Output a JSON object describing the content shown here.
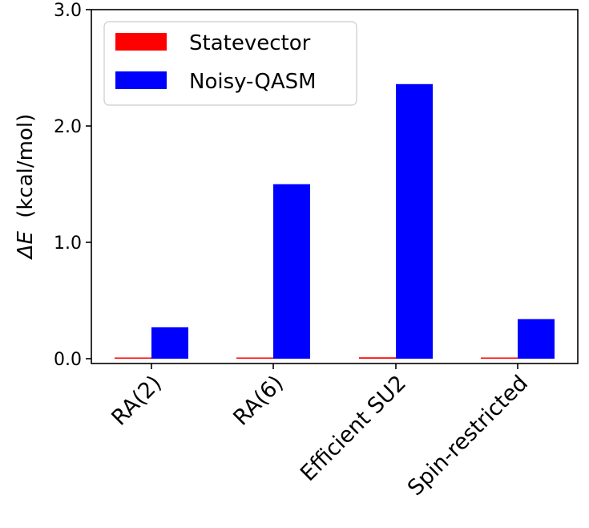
{
  "chart_data": {
    "type": "bar",
    "categories": [
      "RA(2)",
      "RA(6)",
      "Efficient SU2",
      "Spin-restricted"
    ],
    "series": [
      {
        "name": "Statevector",
        "values": [
          0.002,
          0.002,
          0.012,
          0.002
        ],
        "color": "#ff0000"
      },
      {
        "name": "Noisy-QASM",
        "values": [
          0.27,
          1.5,
          2.36,
          0.34
        ],
        "color": "#0000ff"
      }
    ],
    "ylabel_prefix": "ΔE",
    "ylabel_unit": "(kcal/mol)",
    "ylim": [
      0.0,
      3.0
    ],
    "yticks": [
      0.0,
      1.0,
      2.0,
      3.0
    ],
    "ytick_labels": [
      "0.0",
      "1.0",
      "2.0",
      "3.0"
    ],
    "legend_position": "top-left",
    "grid": false
  }
}
